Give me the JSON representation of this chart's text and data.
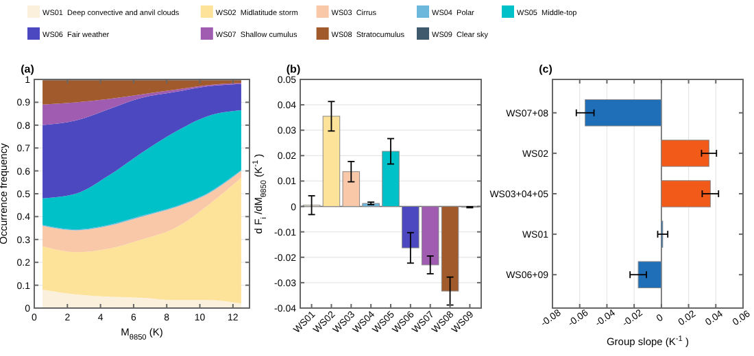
{
  "chart_data": [
    {
      "type": "area",
      "stacked": true,
      "title": "(a)",
      "xlabel": "M$_{θ850}$ (K)",
      "ylabel": "Occurrence frequency",
      "x": [
        0.5,
        2.5,
        4.5,
        6.5,
        8.5,
        10.5,
        12.5
      ],
      "xlim": [
        0,
        13
      ],
      "xticks": [
        0,
        2,
        4,
        6,
        8,
        10,
        12
      ],
      "ylim": [
        0,
        1
      ],
      "yticks": [
        0,
        0.1,
        0.2,
        0.3,
        0.4,
        0.5,
        0.6,
        0.7,
        0.8,
        0.9,
        1
      ],
      "grid": "y",
      "legend": "top",
      "series": [
        {
          "name": "WS01  Deep convective and anvil clouds",
          "color": "#fbf0dc",
          "values": [
            0.08,
            0.06,
            0.05,
            0.045,
            0.035,
            0.035,
            0.02
          ]
        },
        {
          "name": "WS02  Midlatitude storm",
          "color": "#fde29a",
          "values": [
            0.19,
            0.185,
            0.21,
            0.255,
            0.315,
            0.415,
            0.55
          ]
        },
        {
          "name": "WS03  Cirrus",
          "color": "#f9c8a8",
          "values": [
            0.09,
            0.095,
            0.1,
            0.1,
            0.09,
            0.05,
            0.03
          ]
        },
        {
          "name": "WS04  Polar",
          "color": "#6cb8dc",
          "values": [
            0.004,
            0.004,
            0.004,
            0.004,
            0.004,
            0.004,
            0.004
          ]
        },
        {
          "name": "WS05  Middle-top",
          "color": "#00c0c8",
          "values": [
            0.116,
            0.156,
            0.216,
            0.276,
            0.326,
            0.336,
            0.261
          ]
        },
        {
          "name": "WS06  Fair weather",
          "color": "#4b48c0",
          "values": [
            0.32,
            0.32,
            0.29,
            0.24,
            0.175,
            0.13,
            0.115
          ]
        },
        {
          "name": "WS07  Shallow cumulus",
          "color": "#a05cb0",
          "values": [
            0.09,
            0.08,
            0.045,
            0.015,
            0.01,
            0.005,
            0.005
          ]
        },
        {
          "name": "WS08  Stratocumulus",
          "color": "#a05a2c",
          "values": [
            0.106,
            0.096,
            0.081,
            0.061,
            0.041,
            0.021,
            0.011
          ]
        },
        {
          "name": "WS09  Clear sky",
          "color": "#3e5a6c",
          "values": [
            0.004,
            0.004,
            0.004,
            0.004,
            0.004,
            0.004,
            0.004
          ]
        }
      ]
    },
    {
      "type": "bar",
      "title": "(b)",
      "ylabel": "d F$_{i}$/dM$_{θ850}$ (K$^{-1}$)",
      "categories": [
        "WS01",
        "WS02",
        "WS03",
        "WS04",
        "WS05",
        "WS06",
        "WS07",
        "WS08",
        "WS09"
      ],
      "values": [
        0.0005,
        0.0355,
        0.0137,
        0.0012,
        0.0217,
        -0.0163,
        -0.023,
        -0.0333,
        -0.0003
      ],
      "errors": [
        0.0037,
        0.0058,
        0.004,
        0.0005,
        0.005,
        0.006,
        0.0035,
        0.0055,
        0.0002
      ],
      "colors": [
        "#fbf0dc",
        "#fde29a",
        "#f9c8a8",
        "#6cb8dc",
        "#00c0c8",
        "#4b48c0",
        "#a05cb0",
        "#a05a2c",
        "#3e5a6c"
      ],
      "ylim": [
        -0.04,
        0.05
      ],
      "yticks": [
        -0.04,
        -0.03,
        -0.02,
        -0.01,
        0,
        0.01,
        0.02,
        0.03,
        0.04,
        0.05
      ],
      "grid": "y"
    },
    {
      "type": "bar",
      "orientation": "horizontal",
      "title": "(c)",
      "xlabel": "Group slope (K$^{-1}$)",
      "categories": [
        "WS07+08",
        "WS02",
        "WS03+04+05",
        "WS01",
        "WS06+09"
      ],
      "values": [
        -0.056,
        0.035,
        0.036,
        0.001,
        -0.017
      ],
      "errors": [
        0.0065,
        0.0055,
        0.006,
        0.0037,
        0.006
      ],
      "colors": [
        "#1f6fb8",
        "#f25a1a",
        "#f25a1a",
        "#1f6fb8",
        "#1f6fb8"
      ],
      "xlim": [
        -0.08,
        0.06
      ],
      "xticks": [
        -0.08,
        -0.06,
        -0.04,
        -0.02,
        0,
        0.02,
        0.04,
        0.06
      ],
      "grid": "x"
    }
  ]
}
